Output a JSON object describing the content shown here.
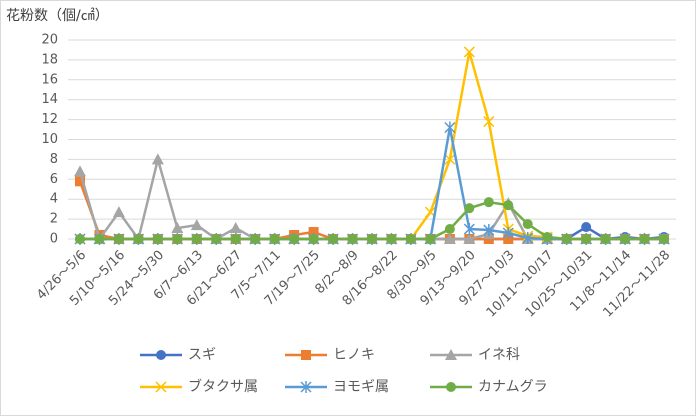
{
  "chart_data": {
    "type": "line",
    "title": "花粉数（個/㎠）",
    "categories": [
      "4/26～5/6",
      null,
      "5/10～5/16",
      null,
      "5/24～5/30",
      null,
      "6/7～6/13",
      null,
      "6/21～6/27",
      null,
      "7/5～7/11",
      null,
      "7/19～7/25",
      null,
      "8/2～8/9",
      null,
      "8/16～8/22",
      null,
      "8/30～9/5",
      null,
      "9/13～9/20",
      null,
      "9/27～10/3",
      null,
      "10/11～10/17",
      null,
      "10/25～10/31",
      null,
      "11/8～11/14",
      null,
      "11/22～11/28"
    ],
    "series": [
      {
        "name": "スギ",
        "color": "#4472c4",
        "marker": "circle",
        "values": [
          0,
          0,
          0,
          0,
          0,
          0,
          0,
          0,
          0,
          0,
          0,
          0,
          0,
          0,
          0,
          0,
          0,
          0,
          0,
          0,
          0,
          0,
          0,
          0,
          0,
          0,
          1.2,
          0,
          0.2,
          0,
          0.2
        ]
      },
      {
        "name": "ヒノキ",
        "color": "#ed7d31",
        "marker": "square",
        "values": [
          5.8,
          0.4,
          0,
          0,
          0,
          0,
          0,
          0,
          0,
          0,
          0,
          0.4,
          0.7,
          0,
          0,
          0,
          0,
          0,
          0,
          0,
          0,
          0,
          0,
          0,
          0,
          0,
          0,
          0,
          0,
          0,
          0
        ]
      },
      {
        "name": "イネ科",
        "color": "#a5a5a5",
        "marker": "triangle",
        "values": [
          6.8,
          0,
          2.7,
          0,
          8.0,
          1.1,
          1.4,
          0,
          1.1,
          0,
          0,
          0,
          0,
          0,
          0,
          0,
          0,
          0,
          0,
          0,
          0,
          0.5,
          3.6,
          0,
          0,
          0,
          0,
          0,
          0,
          0,
          0
        ]
      },
      {
        "name": "ブタクサ属",
        "color": "#ffc000",
        "marker": "x",
        "values": [
          0,
          0,
          0,
          0,
          0,
          0,
          0,
          0,
          0,
          0,
          0,
          0,
          0,
          0,
          0,
          0,
          0,
          0,
          2.7,
          8.0,
          18.8,
          11.8,
          1.0,
          0.3,
          0.2,
          0,
          0,
          0,
          0,
          0,
          0
        ]
      },
      {
        "name": "ヨモギ属",
        "color": "#5b9bd5",
        "marker": "star",
        "values": [
          0,
          0,
          0,
          0,
          0,
          0,
          0,
          0,
          0,
          0,
          0,
          0,
          0,
          0,
          0,
          0,
          0,
          0,
          0,
          11.2,
          1.0,
          0.9,
          0.6,
          0.1,
          0,
          0,
          0,
          0,
          0,
          0,
          0
        ]
      },
      {
        "name": "カナムグラ",
        "color": "#70ad47",
        "marker": "circle",
        "values": [
          0,
          0,
          0,
          0,
          0,
          0,
          0,
          0,
          0,
          0,
          0,
          0,
          0,
          0,
          0,
          0,
          0,
          0,
          0,
          1.0,
          3.1,
          3.7,
          3.4,
          1.5,
          0.2,
          0,
          0,
          0,
          0,
          0,
          0
        ]
      }
    ],
    "ylim": [
      0,
      20
    ],
    "yticks": [
      0,
      2,
      4,
      6,
      8,
      10,
      12,
      14,
      16,
      18,
      20
    ],
    "grid": true,
    "legend": "bottom"
  }
}
